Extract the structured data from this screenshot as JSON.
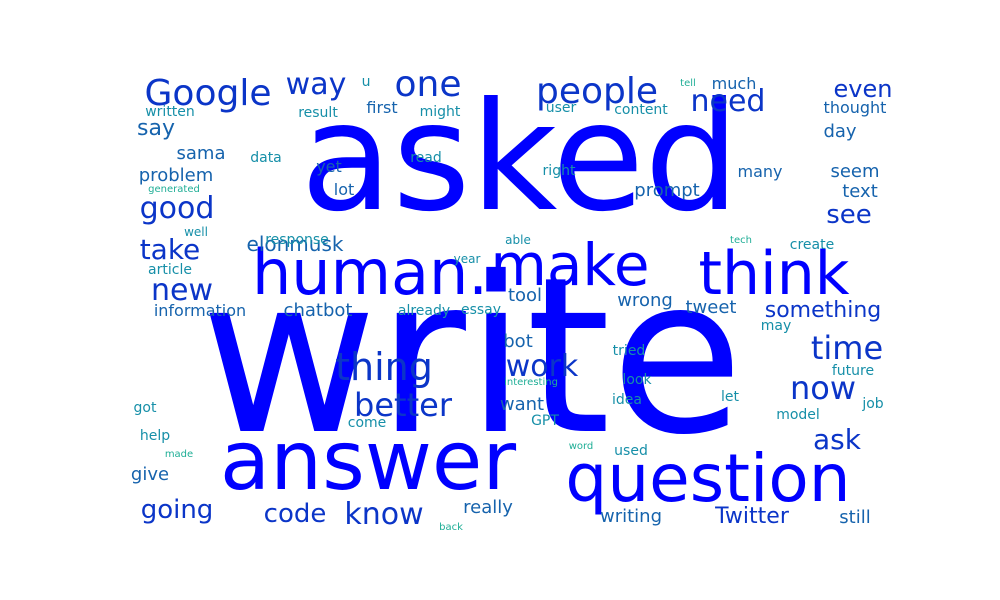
{
  "colors": {
    "background": "#ffffff",
    "blue": "#0000ff",
    "navy": "#0b35c8",
    "steel": "#1663ad",
    "teal": "#168fa8",
    "green": "#1fae96"
  },
  "words": [
    {
      "text": "write",
      "color": "blue"
    },
    {
      "text": "asked",
      "color": "blue"
    },
    {
      "text": "answer",
      "color": "blue"
    },
    {
      "text": "question",
      "color": "blue"
    },
    {
      "text": "human.",
      "color": "blue"
    },
    {
      "text": "make",
      "color": "blue"
    },
    {
      "text": "think",
      "color": "blue"
    },
    {
      "text": "Google",
      "color": "navy"
    },
    {
      "text": "people",
      "color": "navy"
    },
    {
      "text": "one",
      "color": "navy"
    },
    {
      "text": "way",
      "color": "navy"
    },
    {
      "text": "need",
      "color": "navy"
    },
    {
      "text": "thing",
      "color": "navy"
    },
    {
      "text": "work",
      "color": "navy"
    },
    {
      "text": "better",
      "color": "navy"
    },
    {
      "text": "time",
      "color": "navy"
    },
    {
      "text": "now",
      "color": "navy"
    },
    {
      "text": "ask",
      "color": "navy"
    },
    {
      "text": "good",
      "color": "navy"
    },
    {
      "text": "take",
      "color": "navy"
    },
    {
      "text": "new",
      "color": "navy"
    },
    {
      "text": "know",
      "color": "navy"
    },
    {
      "text": "code",
      "color": "navy"
    },
    {
      "text": "going",
      "color": "navy"
    },
    {
      "text": "see",
      "color": "navy"
    },
    {
      "text": "even",
      "color": "navy"
    },
    {
      "text": "something",
      "color": "navy"
    },
    {
      "text": "Twitter",
      "color": "navy"
    },
    {
      "text": "elonmusk",
      "color": "steel"
    },
    {
      "text": "chatbot",
      "color": "steel"
    },
    {
      "text": "say",
      "color": "steel"
    },
    {
      "text": "sama",
      "color": "steel"
    },
    {
      "text": "problem",
      "color": "steel"
    },
    {
      "text": "tool",
      "color": "steel"
    },
    {
      "text": "wrong",
      "color": "steel"
    },
    {
      "text": "tweet",
      "color": "steel"
    },
    {
      "text": "really",
      "color": "steel"
    },
    {
      "text": "writing",
      "color": "steel"
    },
    {
      "text": "still",
      "color": "steel"
    },
    {
      "text": "day",
      "color": "steel"
    },
    {
      "text": "seem",
      "color": "steel"
    },
    {
      "text": "text",
      "color": "steel"
    },
    {
      "text": "prompt",
      "color": "steel"
    },
    {
      "text": "bot",
      "color": "steel"
    },
    {
      "text": "want",
      "color": "steel"
    },
    {
      "text": "give",
      "color": "steel"
    },
    {
      "text": "information",
      "color": "steel"
    },
    {
      "text": "much",
      "color": "steel"
    },
    {
      "text": "thought",
      "color": "steel"
    },
    {
      "text": "many",
      "color": "steel"
    },
    {
      "text": "first",
      "color": "steel"
    },
    {
      "text": "lot",
      "color": "steel"
    },
    {
      "text": "yet",
      "color": "steel"
    },
    {
      "text": "written",
      "color": "teal"
    },
    {
      "text": "result",
      "color": "teal"
    },
    {
      "text": "might",
      "color": "teal"
    },
    {
      "text": "user",
      "color": "teal"
    },
    {
      "text": "content",
      "color": "teal"
    },
    {
      "text": "data",
      "color": "teal"
    },
    {
      "text": "read",
      "color": "teal"
    },
    {
      "text": "right",
      "color": "teal"
    },
    {
      "text": "response",
      "color": "teal"
    },
    {
      "text": "article",
      "color": "teal"
    },
    {
      "text": "already",
      "color": "teal"
    },
    {
      "text": "essay",
      "color": "teal"
    },
    {
      "text": "tried",
      "color": "teal"
    },
    {
      "text": "look",
      "color": "teal"
    },
    {
      "text": "idea",
      "color": "teal"
    },
    {
      "text": "let",
      "color": "teal"
    },
    {
      "text": "future",
      "color": "teal"
    },
    {
      "text": "job",
      "color": "teal"
    },
    {
      "text": "model",
      "color": "teal"
    },
    {
      "text": "help",
      "color": "teal"
    },
    {
      "text": "got",
      "color": "teal"
    },
    {
      "text": "come",
      "color": "teal"
    },
    {
      "text": "GPT",
      "color": "teal"
    },
    {
      "text": "used",
      "color": "teal"
    },
    {
      "text": "may",
      "color": "teal"
    },
    {
      "text": "create",
      "color": "teal"
    },
    {
      "text": "able",
      "color": "teal"
    },
    {
      "text": "year",
      "color": "teal"
    },
    {
      "text": "well",
      "color": "teal"
    },
    {
      "text": "u",
      "color": "teal"
    },
    {
      "text": "tell",
      "color": "green"
    },
    {
      "text": "generated",
      "color": "green"
    },
    {
      "text": "tech",
      "color": "green"
    },
    {
      "text": "interesting",
      "color": "green"
    },
    {
      "text": "word",
      "color": "green"
    },
    {
      "text": "made",
      "color": "green"
    },
    {
      "text": "back",
      "color": "green"
    }
  ]
}
